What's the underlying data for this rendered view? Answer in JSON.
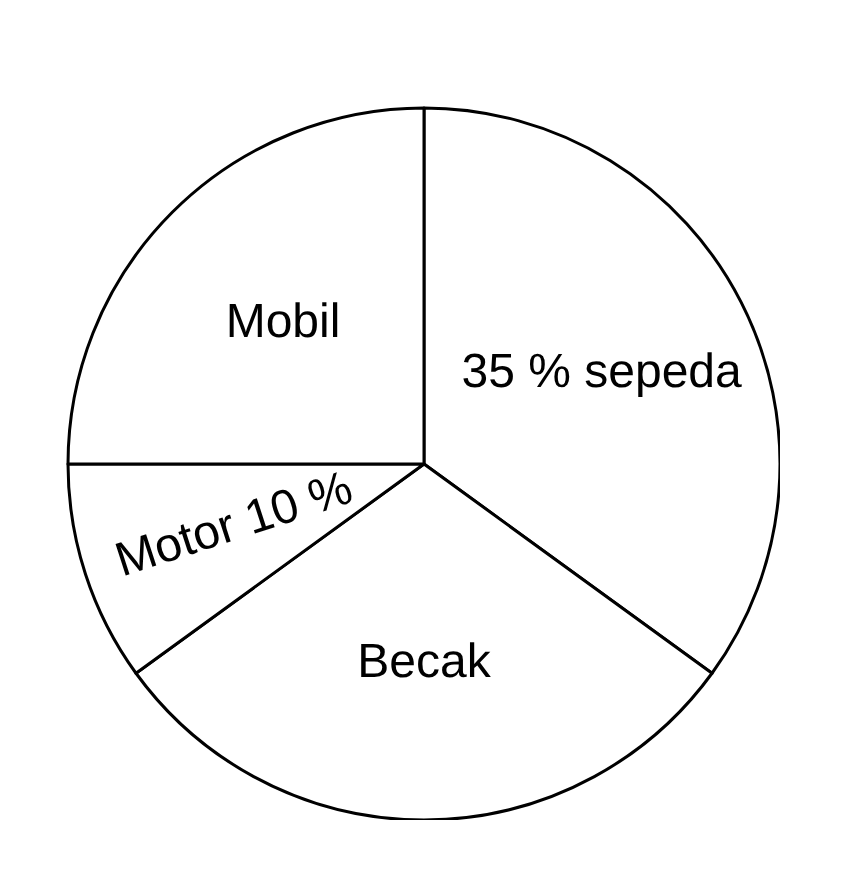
{
  "chart_data": {
    "type": "pie",
    "categories": [
      "35 % sepeda",
      "Becak",
      "Motor 10 %",
      "Mobil"
    ],
    "values": [
      35,
      30,
      10,
      25
    ],
    "colors": [
      "#ffffff",
      "#ffffff",
      "#ffffff",
      "#ffffff"
    ],
    "legend": false
  }
}
